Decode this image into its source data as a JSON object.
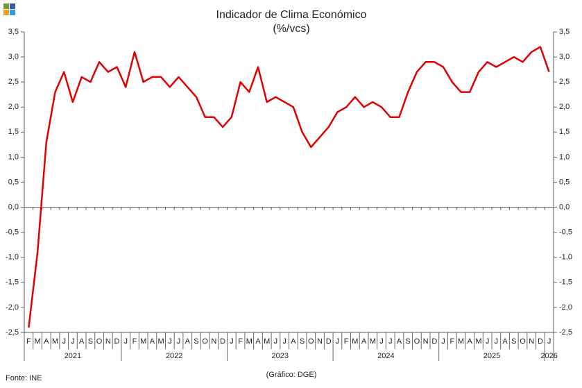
{
  "chart_data": {
    "type": "line",
    "title": "Indicador de Clima Económico",
    "subtitle": "(%/vcs)",
    "source": "Fonte: INE",
    "credit": "(Gráfico: DGE)",
    "categories": [
      "F",
      "M",
      "A",
      "M",
      "J",
      "J",
      "A",
      "S",
      "O",
      "N",
      "D",
      "J",
      "F",
      "M",
      "A",
      "M",
      "J",
      "J",
      "A",
      "S",
      "O",
      "N",
      "D",
      "J",
      "F",
      "M",
      "A",
      "M",
      "J",
      "J",
      "A",
      "S",
      "O",
      "N",
      "D",
      "J",
      "F",
      "M",
      "A",
      "M",
      "J",
      "J",
      "A",
      "S",
      "O",
      "N",
      "D",
      "J",
      "F",
      "M",
      "A",
      "M",
      "J",
      "J",
      "A",
      "S",
      "O",
      "N",
      "D",
      "J"
    ],
    "years": [
      "2021",
      "2022",
      "2023",
      "2024",
      "2025",
      "2026"
    ],
    "series": [
      {
        "name": "Indicador de Clima Económico",
        "color": "#e00000",
        "values": [
          -2.4,
          -0.9,
          1.3,
          2.3,
          2.7,
          2.1,
          2.6,
          2.5,
          2.9,
          2.7,
          2.8,
          2.4,
          3.1,
          2.5,
          2.6,
          2.6,
          2.4,
          2.6,
          2.4,
          2.2,
          1.8,
          1.8,
          1.6,
          1.8,
          2.5,
          2.3,
          2.8,
          2.1,
          2.2,
          2.1,
          2.0,
          1.5,
          1.2,
          1.4,
          1.6,
          1.9,
          2.0,
          2.2,
          2.0,
          2.1,
          2.0,
          1.8,
          1.8,
          2.3,
          2.7,
          2.9,
          2.9,
          2.8,
          2.5,
          2.3,
          2.3,
          2.7,
          2.9,
          2.8,
          2.9,
          3.0,
          2.9,
          3.1,
          3.2,
          2.7
        ]
      }
    ],
    "ylim": [
      -2.5,
      3.5
    ],
    "yticks": [
      {
        "value": -2.5,
        "label": "-2,5"
      },
      {
        "value": -2,
        "label": "-2,0"
      },
      {
        "value": -1.5,
        "label": "-1,5"
      },
      {
        "value": -1,
        "label": "-1,0"
      },
      {
        "value": -0.5,
        "label": "-0,5"
      },
      {
        "value": 0,
        "label": "0,0"
      },
      {
        "value": 0.5,
        "label": "0,5"
      },
      {
        "value": 1,
        "label": "1,0"
      },
      {
        "value": 1.5,
        "label": "1,5"
      },
      {
        "value": 2,
        "label": "2,0"
      },
      {
        "value": 2.5,
        "label": "2,5"
      },
      {
        "value": 3,
        "label": "3,0"
      },
      {
        "value": 3.5,
        "label": "3,5"
      }
    ]
  }
}
